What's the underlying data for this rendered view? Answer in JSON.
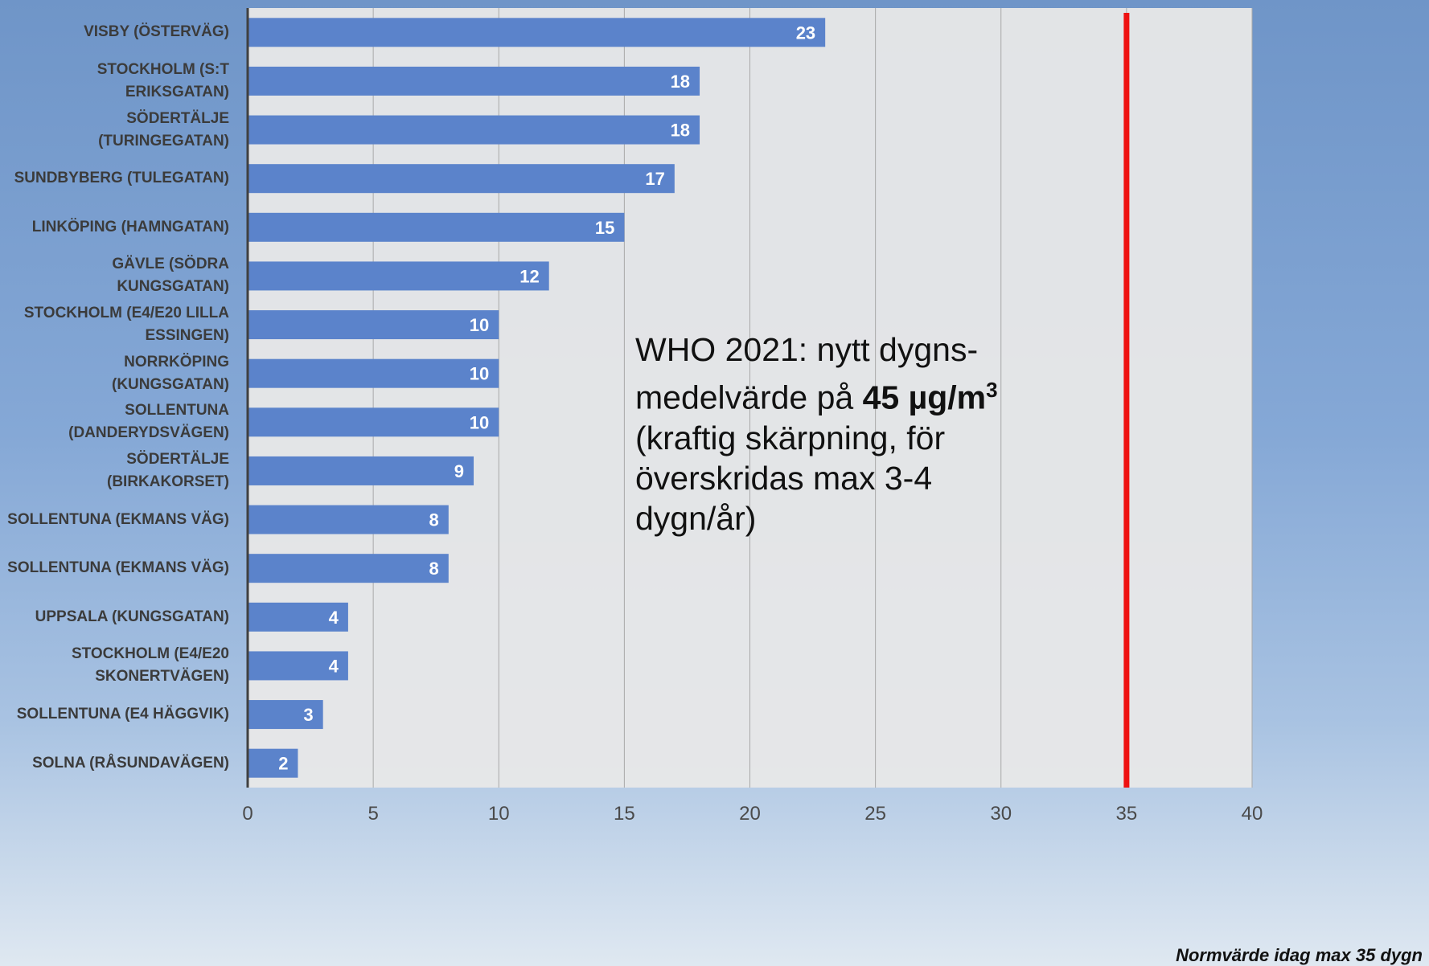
{
  "chart_data": {
    "type": "hbar",
    "categories": [
      "VISBY (ÖSTERVÄG)",
      "STOCKHOLM (S:T ERIKSGATAN)",
      "SÖDERTÄLJE (TURINGEGATAN)",
      "SUNDBYBERG (TULEGATAN)",
      "LINKÖPING (HAMNGATAN)",
      "GÄVLE (SÖDRA KUNGSGATAN)",
      "STOCKHOLM (E4/E20 LILLA ESSINGEN)",
      "NORRKÖPING (KUNGSGATAN)",
      "SOLLENTUNA (DANDERYDSVÄGEN)",
      "SÖDERTÄLJE (BIRKAKORSET)",
      "SOLLENTUNA (EKMANS VÄG)",
      "SOLLENTUNA (EKMANS VÄG)",
      "UPPSALA (KUNGSGATAN)",
      "STOCKHOLM (E4/E20 SKONERTVÄGEN)",
      "SOLLENTUNA (E4 HÄGGVIK)",
      "SOLNA (RÅSUNDAVÄGEN)"
    ],
    "values": [
      23,
      18,
      18,
      17,
      15,
      12,
      10,
      10,
      10,
      9,
      8,
      8,
      4,
      4,
      3,
      2
    ],
    "color": "#5b83cb",
    "xlim": [
      0,
      40
    ],
    "xticks": [
      0,
      5,
      10,
      15,
      20,
      25,
      30,
      35,
      40
    ],
    "grid": true,
    "reference_line": {
      "value": 35,
      "color": "#ee1111",
      "label": "Normvärde idag max 35 dygn"
    },
    "annotation": {
      "before": "WHO 2021: nytt dygns-medelvärde på ",
      "bold": "45 µg/m",
      "sup": "3",
      "after": " (kraftig skärpning, för överskridas max 3-4 dygn/år)"
    }
  }
}
